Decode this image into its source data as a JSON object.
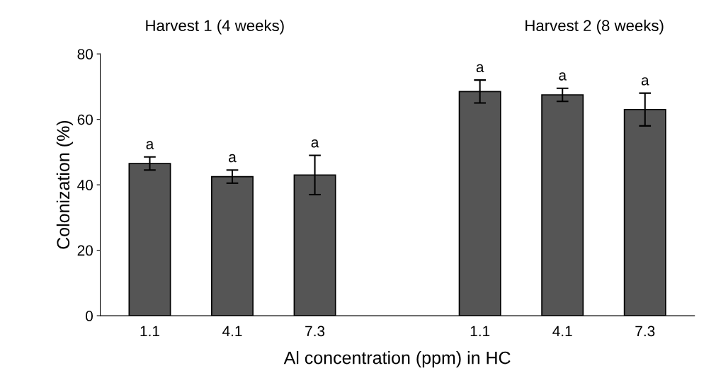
{
  "chart_data": {
    "type": "bar",
    "categories": [
      "1.1",
      "4.1",
      "7.3",
      null,
      "1.1",
      "4.1",
      "7.3"
    ],
    "values": [
      46.5,
      42.5,
      43,
      null,
      68.5,
      67.5,
      63
    ],
    "errors": [
      2,
      2,
      6,
      null,
      3.5,
      2,
      5
    ],
    "value_labels": [
      "a",
      "a",
      "a",
      null,
      "a",
      "a",
      "a"
    ],
    "color": "#555555",
    "xlabel": "Al concentration (ppm) in HC",
    "ylabel": "Colonization (%)",
    "ylim": [
      0,
      80
    ],
    "yticks": [
      0,
      20,
      40,
      60,
      80
    ],
    "grid": false,
    "annotations": [
      "Harvest 1 (4 weeks)",
      "Harvest 2 (8 weeks)"
    ]
  }
}
